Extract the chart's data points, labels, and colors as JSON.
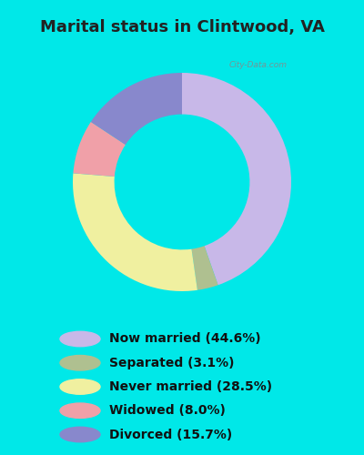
{
  "title": "Marital status in Clintwood, VA",
  "values": [
    44.6,
    3.1,
    28.5,
    8.0,
    15.7
  ],
  "colors": [
    "#c8b8e8",
    "#afc090",
    "#f0f0a0",
    "#f0a0a8",
    "#8888cc"
  ],
  "legend_labels": [
    "Now married (44.6%)",
    "Separated (3.1%)",
    "Never married (28.5%)",
    "Widowed (8.0%)",
    "Divorced (15.7%)"
  ],
  "bg_outer": "#00e8e8",
  "title_fontsize": 13,
  "legend_fontsize": 10,
  "watermark": "City-Data.com",
  "donut_width": 0.38,
  "start_angle": 90
}
